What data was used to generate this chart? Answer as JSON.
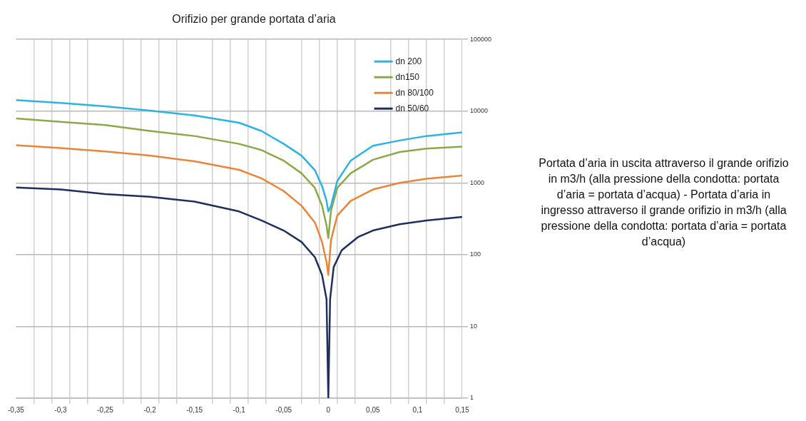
{
  "chart_data": {
    "type": "line",
    "title": "Orifizio per grande portata d’aria",
    "annotations": [
      "Portata d’aria in uscita attraverso il grande orifizio in m3/h (alla pressione della condotta: portata d’aria = portata d’acqua) - Portata d’aria in ingresso attraverso il grande orifizio in m3/h (alla pressione della condotta: portata d’aria = portata d’acqua)"
    ],
    "series": [
      {
        "name": "dn 200",
        "color": "#2eb3e0",
        "x": [
          -0.35,
          -0.3,
          -0.25,
          -0.2,
          -0.15,
          -0.1,
          -0.075,
          -0.05,
          -0.03,
          -0.015,
          -0.007,
          -0.002,
          0,
          0.003,
          0.01,
          0.025,
          0.05,
          0.08,
          0.11,
          0.15
        ],
        "values": [
          14300,
          13000,
          11700,
          10200,
          8700,
          6900,
          5300,
          3500,
          2400,
          1500,
          900,
          560,
          400,
          480,
          1060,
          2040,
          3300,
          3900,
          4500,
          5050
        ]
      },
      {
        "name": "dn150",
        "color": "#8aaa4a",
        "x": [
          -0.35,
          -0.3,
          -0.25,
          -0.2,
          -0.15,
          -0.1,
          -0.075,
          -0.05,
          -0.03,
          -0.015,
          -0.007,
          -0.002,
          0,
          0.003,
          0.01,
          0.025,
          0.05,
          0.08,
          0.11,
          0.15
        ],
        "values": [
          7900,
          7100,
          6400,
          5300,
          4500,
          3500,
          2870,
          2040,
          1360,
          850,
          480,
          255,
          170,
          410,
          850,
          1360,
          2100,
          2700,
          3000,
          3200
        ]
      },
      {
        "name": "dn 80/100",
        "color": "#e8853a",
        "x": [
          -0.35,
          -0.3,
          -0.25,
          -0.2,
          -0.15,
          -0.1,
          -0.075,
          -0.05,
          -0.03,
          -0.015,
          -0.007,
          -0.002,
          0,
          0.003,
          0.01,
          0.025,
          0.05,
          0.08,
          0.11,
          0.15
        ],
        "values": [
          3360,
          3060,
          2750,
          2400,
          2000,
          1520,
          1160,
          770,
          480,
          280,
          150,
          79,
          52,
          160,
          350,
          560,
          810,
          1000,
          1140,
          1270
        ]
      },
      {
        "name": "dn 50/60",
        "color": "#1f2f5c",
        "x": [
          -0.35,
          -0.3,
          -0.25,
          -0.2,
          -0.15,
          -0.1,
          -0.075,
          -0.05,
          -0.03,
          -0.015,
          -0.007,
          -0.002,
          0,
          0.002,
          0.006,
          0.015,
          0.033,
          0.05,
          0.08,
          0.11,
          0.15
        ],
        "values": [
          865,
          810,
          700,
          640,
          550,
          400,
          300,
          217,
          150,
          92,
          52,
          24,
          1,
          24,
          67,
          115,
          175,
          217,
          265,
          300,
          335
        ]
      }
    ],
    "xlim": [
      -0.35,
      0.15
    ],
    "xticks": [
      {
        "value": -0.35,
        "label": "-0,35"
      },
      {
        "value": -0.33,
        "label": null
      },
      {
        "value": -0.31,
        "label": null
      },
      {
        "value": -0.3,
        "label": "-0,3"
      },
      {
        "value": -0.29,
        "label": null
      },
      {
        "value": -0.27,
        "label": null
      },
      {
        "value": -0.25,
        "label": "-0,25"
      },
      {
        "value": -0.23,
        "label": null
      },
      {
        "value": -0.21,
        "label": null
      },
      {
        "value": -0.2,
        "label": "-0,2"
      },
      {
        "value": -0.19,
        "label": null
      },
      {
        "value": -0.17,
        "label": null
      },
      {
        "value": -0.15,
        "label": "-0,15"
      },
      {
        "value": -0.13,
        "label": null
      },
      {
        "value": -0.11,
        "label": null
      },
      {
        "value": -0.1,
        "label": "-0,1"
      },
      {
        "value": -0.09,
        "label": null
      },
      {
        "value": -0.07,
        "label": null
      },
      {
        "value": -0.05,
        "label": "-0,05"
      },
      {
        "value": -0.03,
        "label": null
      },
      {
        "value": -0.01,
        "label": null
      },
      {
        "value": 0,
        "label": "0"
      },
      {
        "value": 0.01,
        "label": null
      },
      {
        "value": 0.03,
        "label": null
      },
      {
        "value": 0.05,
        "label": "0,05"
      },
      {
        "value": 0.07,
        "label": null
      },
      {
        "value": 0.09,
        "label": null
      },
      {
        "value": 0.1,
        "label": "0,1"
      },
      {
        "value": 0.11,
        "label": null
      },
      {
        "value": 0.13,
        "label": null
      },
      {
        "value": 0.15,
        "label": "0,15"
      }
    ],
    "ylim": [
      1,
      100000
    ],
    "yticks": [
      1,
      10,
      100,
      1000,
      10000,
      100000
    ],
    "log": "y",
    "grid": true,
    "legend": "top right",
    "marker": "none",
    "line_style": "solid"
  }
}
